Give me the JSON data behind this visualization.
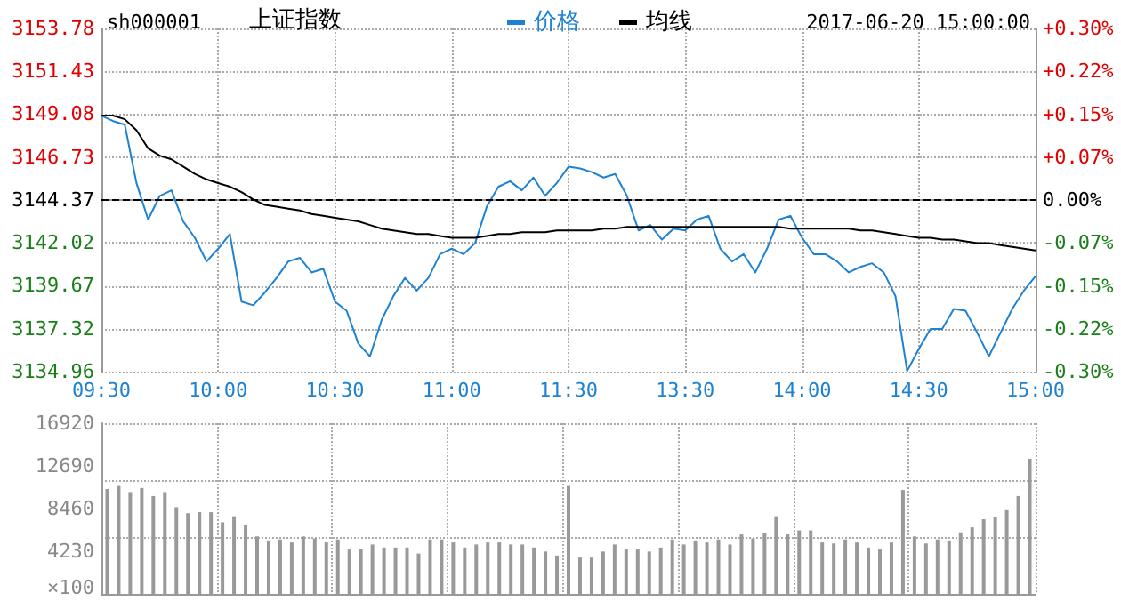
{
  "chart_data": [
    {
      "type": "line",
      "title": "上证指数",
      "subtitle": "sh000001",
      "annotations": [
        "2017-06-20 15:00:00"
      ],
      "categories": [
        "09:30",
        null,
        null,
        null,
        null,
        null,
        null,
        null,
        null,
        null,
        "10:00",
        null,
        null,
        null,
        null,
        null,
        null,
        null,
        null,
        null,
        "10:30",
        null,
        null,
        null,
        null,
        null,
        null,
        null,
        null,
        null,
        "11:00",
        null,
        null,
        null,
        null,
        null,
        null,
        null,
        null,
        null,
        "11:30",
        null,
        null,
        null,
        null,
        null,
        null,
        null,
        null,
        null,
        "13:30",
        null,
        null,
        null,
        null,
        null,
        null,
        null,
        null,
        null,
        "14:00",
        null,
        null,
        null,
        null,
        null,
        null,
        null,
        null,
        null,
        "14:30",
        null,
        null,
        null,
        null,
        null,
        null,
        null,
        null,
        null,
        "15:00"
      ],
      "series": [
        {
          "name": "价格",
          "color": "#1e82d2",
          "values": [
            3149.0,
            3148.7,
            3148.5,
            3145.3,
            3143.3,
            3144.6,
            3144.9,
            3143.2,
            3142.3,
            3141.0,
            3141.7,
            3142.5,
            3138.8,
            3138.6,
            3139.3,
            3140.1,
            3141.0,
            3141.2,
            3140.4,
            3140.6,
            3138.8,
            3138.3,
            3136.5,
            3135.8,
            3137.8,
            3139.1,
            3140.1,
            3139.4,
            3140.1,
            3141.4,
            3141.7,
            3141.4,
            3142.0,
            3144.0,
            3145.1,
            3145.4,
            3144.9,
            3145.6,
            3144.6,
            3145.3,
            3146.2,
            3146.1,
            3145.9,
            3145.6,
            3145.8,
            3144.6,
            3142.7,
            3143.0,
            3142.2,
            3142.8,
            3142.7,
            3143.3,
            3143.5,
            3141.7,
            3141.0,
            3141.4,
            3140.4,
            3141.7,
            3143.3,
            3143.5,
            3142.3,
            3141.4,
            3141.4,
            3141.0,
            3140.4,
            3140.7,
            3140.9,
            3140.4,
            3139.1,
            3135.0,
            3136.2,
            3137.3,
            3137.3,
            3138.4,
            3138.3,
            3137.1,
            3135.8,
            3137.1,
            3138.4,
            3139.4,
            3140.2
          ]
        },
        {
          "name": "均线",
          "color": "#000000",
          "values": [
            3149.0,
            3149.0,
            3148.8,
            3148.2,
            3147.2,
            3146.8,
            3146.6,
            3146.2,
            3145.8,
            3145.5,
            3145.3,
            3145.1,
            3144.8,
            3144.4,
            3144.1,
            3144.0,
            3143.9,
            3143.8,
            3143.6,
            3143.5,
            3143.4,
            3143.3,
            3143.2,
            3143.0,
            3142.8,
            3142.7,
            3142.6,
            3142.5,
            3142.5,
            3142.4,
            3142.3,
            3142.3,
            3142.3,
            3142.4,
            3142.5,
            3142.5,
            3142.6,
            3142.6,
            3142.6,
            3142.7,
            3142.7,
            3142.7,
            3142.7,
            3142.8,
            3142.8,
            3142.9,
            3142.9,
            3142.9,
            3142.9,
            3142.9,
            3142.9,
            3142.9,
            3142.9,
            3142.9,
            3142.9,
            3142.9,
            3142.9,
            3142.9,
            3142.9,
            3142.8,
            3142.8,
            3142.8,
            3142.8,
            3142.8,
            3142.8,
            3142.7,
            3142.7,
            3142.6,
            3142.5,
            3142.4,
            3142.3,
            3142.3,
            3142.2,
            3142.2,
            3142.1,
            3142.0,
            3142.0,
            3141.9,
            3141.8,
            3141.7,
            3141.6
          ]
        }
      ],
      "ylim": [
        3134.96,
        3153.78
      ],
      "yticks": [
        3134.96,
        3137.32,
        3139.67,
        3142.02,
        3144.37,
        3146.73,
        3149.08,
        3151.43,
        3153.78
      ],
      "y2lim": [
        -0.3,
        0.3
      ],
      "y2ticks": [
        {
          "value": -0.3,
          "label": "-0.30%"
        },
        {
          "value": -0.225,
          "label": "-0.22%"
        },
        {
          "value": -0.15,
          "label": "-0.15%"
        },
        {
          "value": -0.075,
          "label": "-0.07%"
        },
        {
          "value": 0,
          "label": "0.00%"
        },
        {
          "value": 0.075,
          "label": "+0.07%"
        },
        {
          "value": 0.15,
          "label": "+0.15%"
        },
        {
          "value": 0.225,
          "label": "+0.22%"
        },
        {
          "value": 0.3,
          "label": "+0.30%"
        }
      ],
      "ref_lines": [
        {
          "axis": "y",
          "value": 3144.37,
          "color": "#000000",
          "line_style": "dashed"
        }
      ],
      "grid": true,
      "legend": "top",
      "marker": "none"
    },
    {
      "type": "bar",
      "ylabel": "×100",
      "categories": [
        null,
        null,
        null,
        null,
        null,
        null,
        null,
        null,
        null,
        null,
        null,
        null,
        null,
        null,
        null,
        null,
        null,
        null,
        null,
        null,
        null,
        null,
        null,
        null,
        null,
        null,
        null,
        null,
        null,
        null,
        null,
        null,
        null,
        null,
        null,
        null,
        null,
        null,
        null,
        null,
        null,
        null,
        null,
        null,
        null,
        null,
        null,
        null,
        null,
        null,
        null,
        null,
        null,
        null,
        null,
        null,
        null,
        null,
        null,
        null,
        null,
        null,
        null,
        null,
        null,
        null,
        null,
        null,
        null,
        null,
        null,
        null,
        null,
        null,
        null,
        null,
        null,
        null,
        null,
        null,
        null
      ],
      "color": "#999999",
      "values": [
        10400,
        10700,
        10100,
        10500,
        9700,
        10100,
        8600,
        8000,
        8100,
        8100,
        7100,
        7700,
        6800,
        5700,
        5300,
        5400,
        5100,
        5700,
        5500,
        5100,
        5400,
        4400,
        4400,
        4900,
        4600,
        4600,
        4600,
        4000,
        5400,
        5400,
        5100,
        4600,
        4900,
        5100,
        5100,
        4900,
        4900,
        4600,
        4200,
        3800,
        10700,
        3600,
        3600,
        4200,
        4900,
        4400,
        4400,
        4200,
        4600,
        5400,
        4900,
        5300,
        5100,
        5400,
        4900,
        5900,
        5500,
        6000,
        7700,
        5900,
        6300,
        6300,
        5100,
        5000,
        5400,
        5100,
        4600,
        4400,
        5100,
        10300,
        5700,
        5000,
        5400,
        5300,
        6100,
        6600,
        7400,
        7600,
        8300,
        9700,
        13400
      ],
      "ylim": [
        0,
        16920
      ],
      "yticks": [
        4230,
        8460,
        12690,
        16920
      ],
      "grid": true,
      "tick_labels": "y"
    }
  ]
}
